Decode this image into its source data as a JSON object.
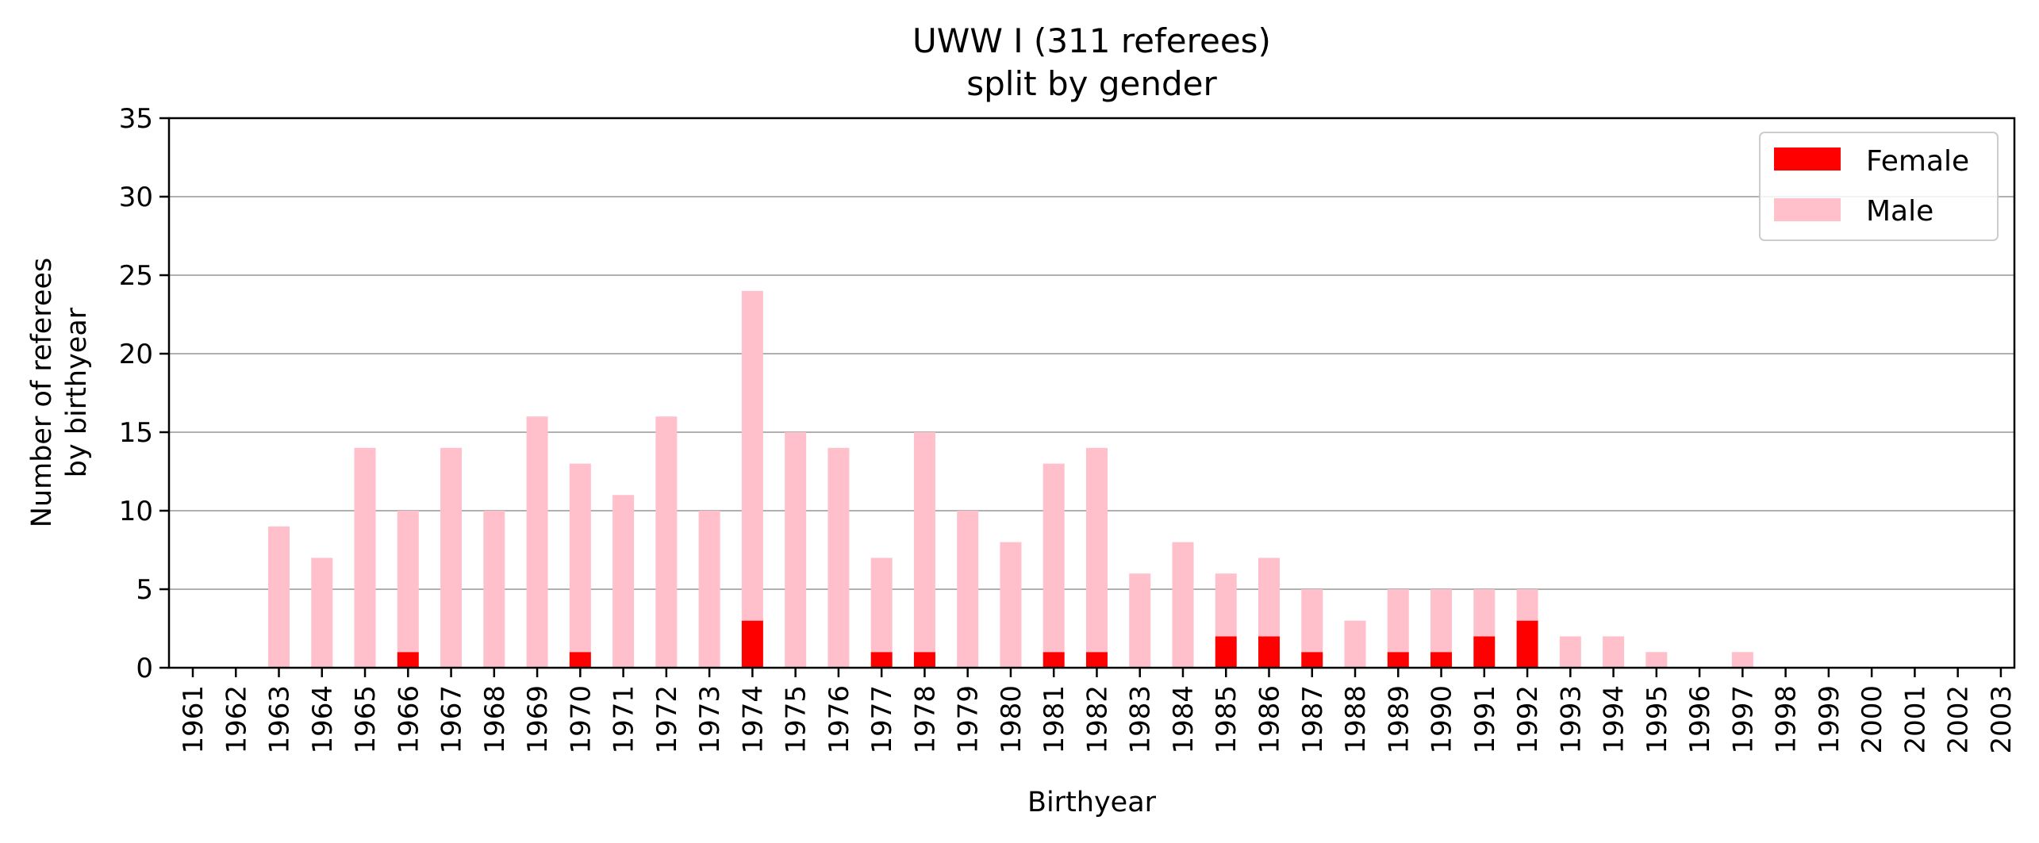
{
  "chart_data": {
    "type": "bar",
    "stacked": true,
    "title": "UWW I (311 referees)",
    "subtitle": "split by gender",
    "xlabel": "Birthyear",
    "ylabel_line1": "Number of referees",
    "ylabel_line2": "by birthyear",
    "ylim": [
      0,
      35
    ],
    "yticks": [
      0,
      5,
      10,
      15,
      20,
      25,
      30,
      35
    ],
    "grid": "horizontal",
    "legend_position": "top-right",
    "categories": [
      "1961",
      "1962",
      "1963",
      "1964",
      "1965",
      "1966",
      "1967",
      "1968",
      "1969",
      "1970",
      "1971",
      "1972",
      "1973",
      "1974",
      "1975",
      "1976",
      "1977",
      "1978",
      "1979",
      "1980",
      "1981",
      "1982",
      "1983",
      "1984",
      "1985",
      "1986",
      "1987",
      "1988",
      "1989",
      "1990",
      "1991",
      "1992",
      "1993",
      "1994",
      "1995",
      "1996",
      "1997",
      "1998",
      "1999",
      "2000",
      "2001",
      "2002",
      "2003"
    ],
    "series": [
      {
        "name": "Female",
        "color": "#ff0000",
        "values": [
          0,
          0,
          0,
          0,
          0,
          1,
          0,
          0,
          0,
          1,
          0,
          0,
          0,
          3,
          0,
          0,
          1,
          1,
          0,
          0,
          1,
          1,
          0,
          0,
          2,
          2,
          1,
          0,
          1,
          1,
          2,
          3,
          0,
          0,
          0,
          0,
          0,
          0,
          0,
          0,
          0,
          0,
          0
        ]
      },
      {
        "name": "Male",
        "color": "#ffc0cb",
        "values": [
          0,
          0,
          9,
          7,
          14,
          9,
          14,
          10,
          16,
          12,
          11,
          16,
          10,
          21,
          15,
          14,
          6,
          14,
          10,
          8,
          12,
          13,
          6,
          8,
          4,
          5,
          4,
          3,
          4,
          4,
          3,
          2,
          2,
          2,
          1,
          0,
          1,
          0,
          0,
          0,
          0,
          0,
          0
        ]
      }
    ]
  }
}
